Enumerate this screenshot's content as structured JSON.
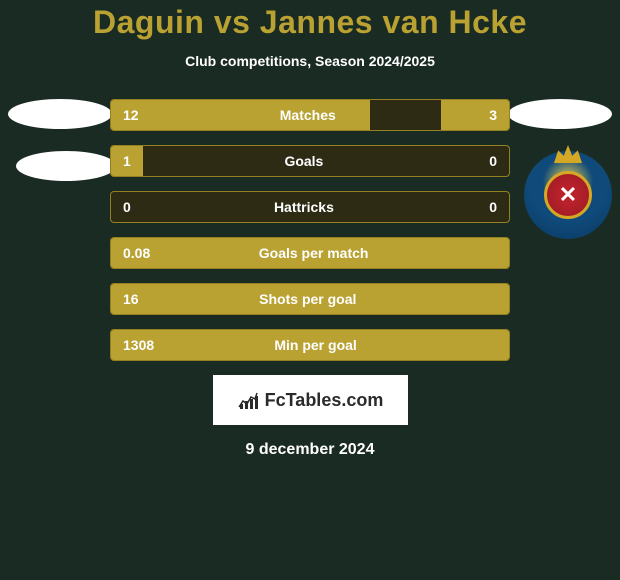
{
  "title": "Daguin vs Jannes van Hcke",
  "subtitle": "Club competitions, Season 2024/2025",
  "stats": [
    {
      "label": "Matches",
      "left_val": "12",
      "right_val": "3",
      "left_pct": 65,
      "right_pct": 17
    },
    {
      "label": "Goals",
      "left_val": "1",
      "right_val": "0",
      "left_pct": 8,
      "right_pct": 0
    },
    {
      "label": "Hattricks",
      "left_val": "0",
      "right_val": "0",
      "left_pct": 0,
      "right_pct": 0
    },
    {
      "label": "Goals per match",
      "left_val": "0.08",
      "right_val": "",
      "left_pct": 100,
      "right_pct": 0
    },
    {
      "label": "Shots per goal",
      "left_val": "16",
      "right_val": "",
      "left_pct": 100,
      "right_pct": 0
    },
    {
      "label": "Min per goal",
      "left_val": "1308",
      "right_val": "",
      "left_pct": 100,
      "right_pct": 0
    }
  ],
  "logo": "FcTables.com",
  "date": "9 december 2024",
  "colors": {
    "accent": "#b9a132",
    "background": "#1a2b23",
    "bar_bg": "#2d2b14",
    "border": "#948020",
    "white": "#ffffff"
  }
}
